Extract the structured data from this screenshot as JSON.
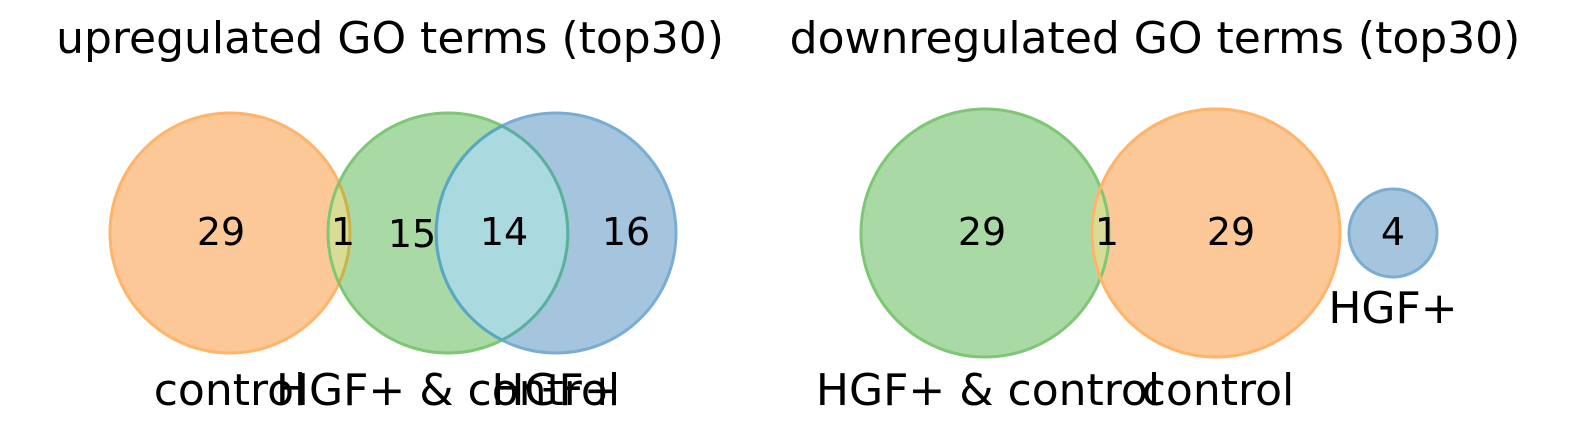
{
  "colors": {
    "orange": "#ff7f0e",
    "green": "#2ca02c",
    "blue": "#1f77b4",
    "orange_fill": "#fdc898",
    "green_fill": "#a9d9a5",
    "blue_fill": "#a5c5de",
    "orange_green_overlap": "#d9dc95",
    "green_blue_overlap": "#aad9df"
  },
  "venn_left": {
    "title": "upregulated GO terms (top30)",
    "sets": [
      "control",
      "HGF+ & control",
      "HGF+"
    ],
    "regions": {
      "control_only": "29",
      "control_and_hgfctrl": "1",
      "hgfctrl_only": "15",
      "hgfctrl_and_hgf": "14",
      "hgf_only": "16"
    }
  },
  "venn_right": {
    "title": "downregulated GO terms (top30)",
    "sets": [
      "HGF+ & control",
      "control",
      "HGF+"
    ],
    "regions": {
      "hgfctrl_only": "29",
      "hgfctrl_and_control": "1",
      "control_only": "29",
      "hgf_only": "4"
    }
  }
}
